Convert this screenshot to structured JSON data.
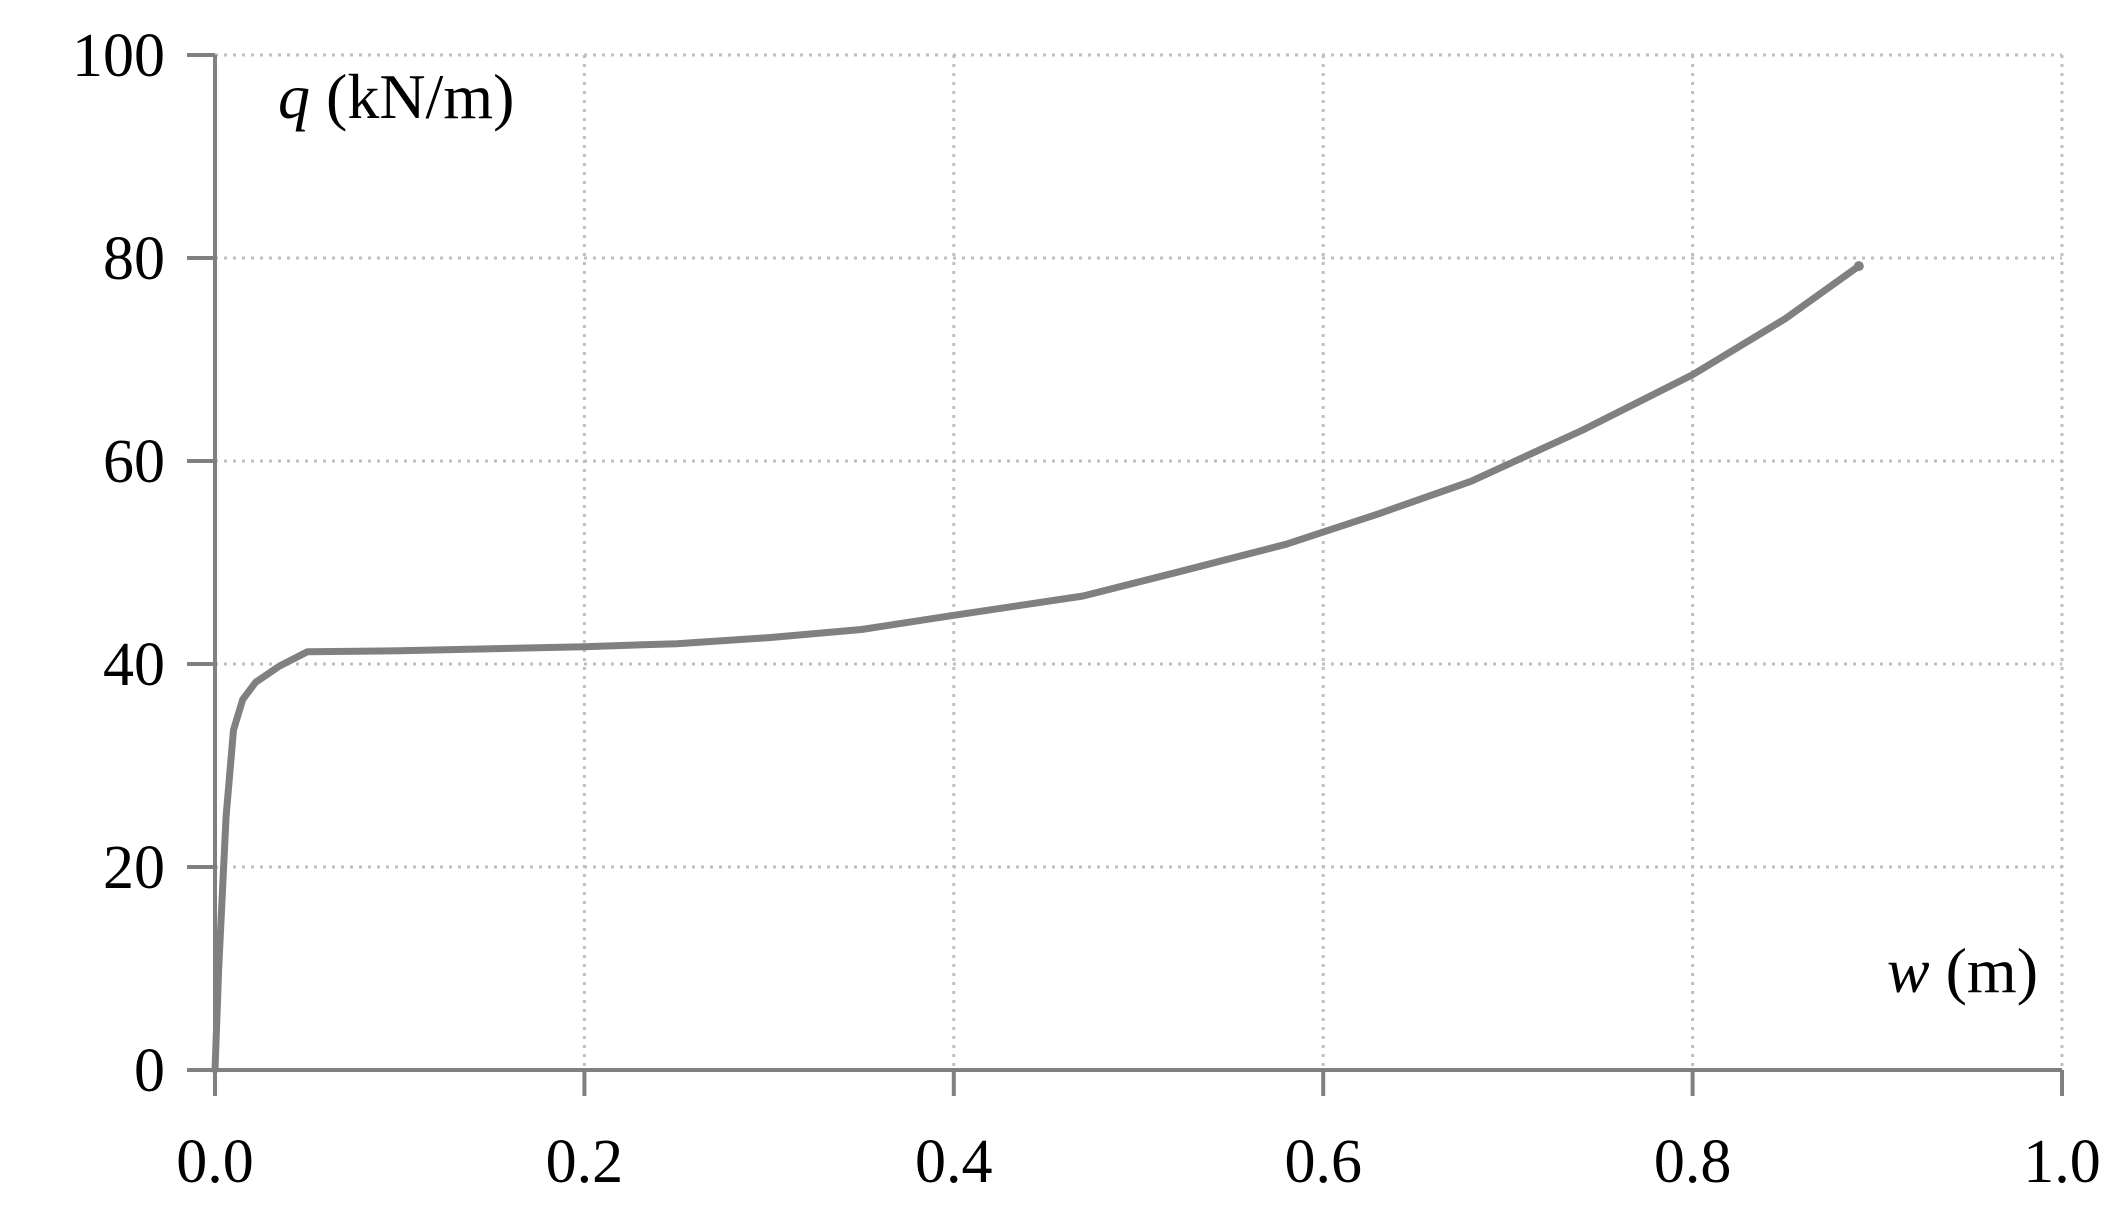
{
  "chart_data": {
    "type": "line",
    "title": "",
    "xlabel": {
      "symbol": "w",
      "unit": " (m)"
    },
    "ylabel": {
      "symbol": "q",
      "unit": " (kN/m)"
    },
    "xlim": [
      0,
      1.0
    ],
    "ylim": [
      0,
      100
    ],
    "x_ticks": [
      0,
      0.2,
      0.4,
      0.6,
      0.8,
      1.0
    ],
    "x_tick_labels": [
      "0.0",
      "0.2",
      "0.4",
      "0.6",
      "0.8",
      "1.0"
    ],
    "y_ticks": [
      0,
      20,
      40,
      60,
      80,
      100
    ],
    "y_tick_labels": [
      "0",
      "20",
      "40",
      "60",
      "80",
      "100"
    ],
    "grid": true,
    "grid_style": "dotted",
    "series": [
      {
        "line_color": "#808080",
        "x": [
          0,
          0.002,
          0.006,
          0.01,
          0.015,
          0.022,
          0.035,
          0.05,
          0.1,
          0.2,
          0.25,
          0.3,
          0.35,
          0.4,
          0.47,
          0.52,
          0.58,
          0.63,
          0.68,
          0.74,
          0.8,
          0.85,
          0.89
        ],
        "y": [
          0,
          10,
          25,
          33.5,
          36.5,
          38.2,
          39.8,
          41.2,
          41.3,
          41.7,
          42.0,
          42.6,
          43.4,
          44.8,
          46.7,
          49.0,
          51.8,
          54.8,
          58.0,
          63.0,
          68.5,
          74.0,
          79.2
        ]
      }
    ],
    "axis_color": "#808080",
    "grid_color": "#bfbfbf"
  }
}
